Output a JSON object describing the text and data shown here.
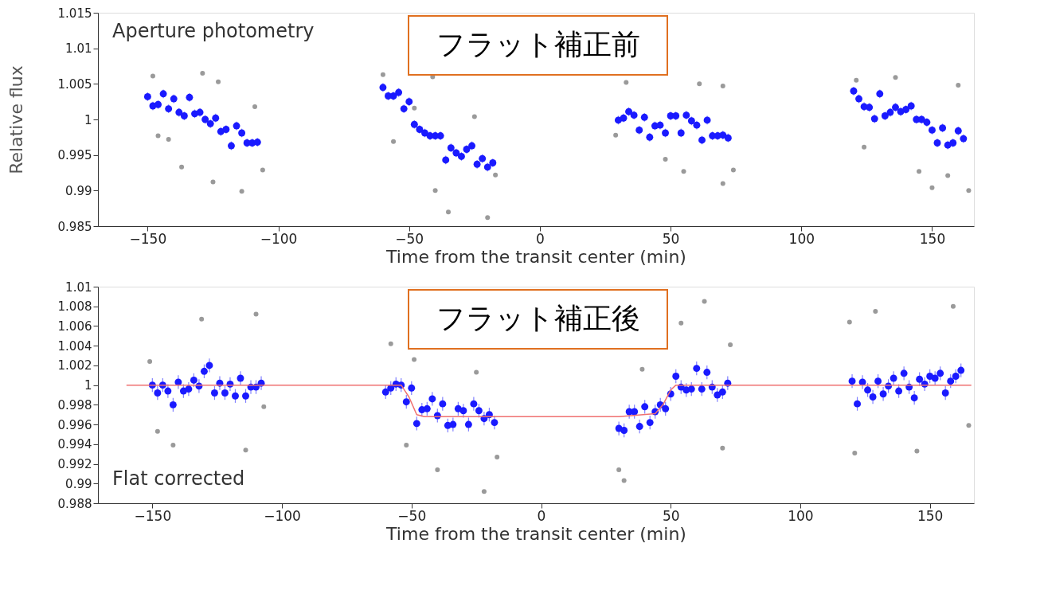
{
  "chart_data": [
    {
      "type": "scatter",
      "xlabel": "Time from the transit center (min)",
      "ylabel": "Relative flux",
      "annotations": [
        "フラット補正前",
        "Aperture photometry"
      ],
      "xlim": [
        -169,
        166
      ],
      "xticks": [
        -150,
        -100,
        -50,
        0,
        50,
        100,
        150
      ],
      "ylim": [
        0.985,
        1.015
      ],
      "yticks": [
        0.985,
        0.99,
        0.995,
        1,
        1.005,
        1.01,
        1.015
      ],
      "grid": false,
      "series": [
        {
          "marker": "circle",
          "color": "#9a9a9a",
          "x": [
            -148,
            -146,
            -142,
            -137,
            -123,
            -125,
            -114,
            -109,
            -106,
            -129,
            -60,
            -56,
            -48,
            -40,
            -35,
            -25,
            -20,
            -17,
            -41,
            33,
            29,
            48,
            55,
            61,
            70,
            70,
            74,
            121,
            124,
            150,
            156,
            160,
            164,
            145,
            136
          ],
          "values": [
            1.0061,
            0.9977,
            0.9972,
            0.9933,
            1.0053,
            0.9912,
            0.9899,
            1.0018,
            0.9929,
            1.0065,
            1.0063,
            0.9969,
            1.0016,
            0.99,
            0.987,
            1.0004,
            0.9862,
            0.9922,
            1.006,
            1.0052,
            0.9978,
            0.9944,
            0.9927,
            1.005,
            0.991,
            1.0047,
            0.9929,
            1.0055,
            0.9961,
            0.9904,
            0.9921,
            1.0048,
            0.99,
            0.9927,
            1.0059
          ]
        },
        {
          "marker": "circle",
          "color": "#1a1aff",
          "x": [
            -150,
            -148,
            -146,
            -144,
            -142,
            -140,
            -138,
            -136,
            -134,
            -132,
            -130,
            -128,
            -126,
            -124,
            -122,
            -120,
            -118,
            -116,
            -114,
            -112,
            -110,
            -108,
            -60,
            -58,
            -56,
            -54,
            -52,
            -50,
            -48,
            -46,
            -44,
            -42,
            -40,
            -38,
            -36,
            -34,
            -32,
            -30,
            -28,
            -26,
            -24,
            -22,
            -20,
            -18,
            30,
            32,
            34,
            36,
            38,
            40,
            42,
            44,
            46,
            48,
            50,
            52,
            54,
            56,
            58,
            60,
            62,
            64,
            66,
            68,
            70,
            72,
            120,
            122,
            124,
            126,
            128,
            130,
            132,
            134,
            136,
            138,
            140,
            142,
            144,
            146,
            148,
            150,
            152,
            154,
            156,
            158,
            160,
            162
          ],
          "values": [
            1.0032,
            1.0019,
            1.0021,
            1.0036,
            1.0015,
            1.0029,
            1.001,
            1.0005,
            1.0031,
            1.0008,
            1.001,
            1.0,
            0.9994,
            1.0002,
            0.9983,
            0.9986,
            0.9963,
            0.9991,
            0.9981,
            0.9967,
            0.9967,
            0.9968,
            1.0045,
            1.0033,
            1.0033,
            1.0038,
            1.0015,
            1.0025,
            0.9993,
            0.9986,
            0.9981,
            0.9977,
            0.9977,
            0.9977,
            0.9943,
            0.996,
            0.9953,
            0.9948,
            0.9958,
            0.9963,
            0.9937,
            0.9945,
            0.9933,
            0.9939,
            0.9999,
            1.0002,
            1.0011,
            1.0006,
            0.9985,
            1.0003,
            0.9975,
            0.9991,
            0.9992,
            0.9981,
            1.0005,
            1.0005,
            0.9981,
            1.0006,
            0.9998,
            0.9992,
            0.9971,
            0.9999,
            0.9977,
            0.9977,
            0.9978,
            0.9974,
            1.004,
            1.0029,
            1.0018,
            1.0017,
            1.0001,
            1.0036,
            1.0005,
            1.001,
            1.0017,
            1.0011,
            1.0014,
            1.0019,
            1.0,
            1.0,
            0.9996,
            0.9985,
            0.9967,
            0.9988,
            0.9964,
            0.9967,
            0.9984,
            0.9973
          ],
          "errors": [
            0.0006,
            0.0006,
            0.0006,
            0.0006,
            0.0006,
            0.0006,
            0.0006,
            0.0006,
            0.0006,
            0.0006,
            0.0006,
            0.0006,
            0.0006,
            0.0006,
            0.0006,
            0.0006,
            0.0006,
            0.0006,
            0.0006,
            0.0006,
            0.0006,
            0.0006,
            0.0006,
            0.0006,
            0.0006,
            0.0006,
            0.0006,
            0.0006,
            0.0006,
            0.0006,
            0.0006,
            0.0006,
            0.0006,
            0.0006,
            0.0006,
            0.0006,
            0.0006,
            0.0006,
            0.0006,
            0.0006,
            0.0006,
            0.0006,
            0.0006,
            0.0006,
            0.0006,
            0.0006,
            0.0006,
            0.0006,
            0.0006,
            0.0006,
            0.0006,
            0.0006,
            0.0006,
            0.0006,
            0.0006,
            0.0006,
            0.0006,
            0.0006,
            0.0006,
            0.0006,
            0.0006,
            0.0006,
            0.0006,
            0.0006,
            0.0006,
            0.0006,
            0.0006,
            0.0006,
            0.0006,
            0.0006,
            0.0006,
            0.0006,
            0.0006,
            0.0006,
            0.0006,
            0.0006,
            0.0006,
            0.0006,
            0.0006,
            0.0006,
            0.0006,
            0.0006,
            0.0006,
            0.0006,
            0.0006,
            0.0006,
            0.0006,
            0.0006
          ]
        }
      ]
    },
    {
      "type": "scatter",
      "xlabel": "Time from the transit center (min)",
      "annotations": [
        "フラット補正後",
        "Flat corrected"
      ],
      "xlim": [
        -171,
        167
      ],
      "xticks": [
        -150,
        -100,
        -50,
        0,
        50,
        100,
        150
      ],
      "ylim": [
        0.988,
        1.01
      ],
      "yticks": [
        0.988,
        0.99,
        0.992,
        0.994,
        0.996,
        0.998,
        1,
        1.002,
        1.004,
        1.006,
        1.008,
        1.01
      ],
      "grid": false,
      "series": [
        {
          "marker": "circle",
          "color": "#9a9a9a",
          "x": [
            -131,
            -148,
            -142,
            -110,
            -114,
            -151,
            -107,
            -58,
            -52,
            -40,
            -22,
            -25,
            -17,
            -49,
            32,
            30,
            54,
            63,
            73,
            70,
            39,
            129,
            121,
            159,
            165,
            145,
            119
          ],
          "values": [
            1.0067,
            0.9953,
            0.9939,
            1.0072,
            0.9934,
            1.0024,
            0.9978,
            1.0042,
            0.9939,
            0.9914,
            0.9892,
            1.0013,
            0.9927,
            1.0026,
            0.9903,
            0.9914,
            1.0063,
            1.0085,
            1.0041,
            0.9936,
            1.0016,
            1.0075,
            0.9931,
            1.008,
            0.9959,
            0.9933,
            1.0064
          ]
        },
        {
          "marker": "circle",
          "color": "#1a1aff",
          "x": [
            -150,
            -148,
            -146,
            -144,
            -142,
            -140,
            -138,
            -136,
            -134,
            -132,
            -130,
            -128,
            -126,
            -124,
            -122,
            -120,
            -118,
            -116,
            -114,
            -112,
            -110,
            -108,
            -60,
            -58,
            -56,
            -54,
            -52,
            -50,
            -48,
            -46,
            -44,
            -42,
            -40,
            -38,
            -36,
            -34,
            -32,
            -30,
            -28,
            -26,
            -24,
            -22,
            -20,
            -18,
            30,
            32,
            34,
            36,
            38,
            40,
            42,
            44,
            46,
            48,
            50,
            52,
            54,
            56,
            58,
            60,
            62,
            64,
            66,
            68,
            70,
            72,
            120,
            122,
            124,
            126,
            128,
            130,
            132,
            134,
            136,
            138,
            140,
            142,
            144,
            146,
            148,
            150,
            152,
            154,
            156,
            158,
            160,
            162
          ],
          "values": [
            1.0,
            0.9992,
            1.0,
            0.9994,
            0.998,
            1.0003,
            0.9994,
            0.9996,
            1.0005,
            0.9999,
            1.0014,
            1.002,
            0.9992,
            1.0002,
            0.9992,
            1.0001,
            0.9989,
            1.0007,
            0.9989,
            0.9998,
            0.9998,
            1.0002,
            0.9993,
            0.9997,
            1.0001,
            1.0,
            0.9983,
            0.9997,
            0.9961,
            0.9975,
            0.9976,
            0.9986,
            0.9969,
            0.9981,
            0.9959,
            0.996,
            0.9976,
            0.9974,
            0.996,
            0.9981,
            0.9974,
            0.9966,
            0.997,
            0.9962,
            0.9956,
            0.9954,
            0.9973,
            0.9973,
            0.9958,
            0.9978,
            0.9962,
            0.9973,
            0.998,
            0.9976,
            0.9991,
            1.0009,
            0.9998,
            0.9995,
            0.9996,
            1.0017,
            0.9996,
            1.0013,
            0.9998,
            0.999,
            0.9993,
            1.0002,
            1.0004,
            0.9981,
            1.0003,
            0.9995,
            0.9988,
            1.0004,
            0.9991,
            0.9999,
            1.0007,
            0.9994,
            1.0012,
            0.9998,
            0.9987,
            1.0006,
            1.0001,
            1.0009,
            1.0007,
            1.0012,
            0.9992,
            1.0004,
            1.0009,
            1.0015
          ],
          "errors": [
            0.0007,
            0.0007,
            0.0007,
            0.0007,
            0.0007,
            0.0007,
            0.0007,
            0.0007,
            0.0007,
            0.0007,
            0.0007,
            0.0007,
            0.0007,
            0.0007,
            0.0007,
            0.0007,
            0.0007,
            0.0007,
            0.0007,
            0.0007,
            0.0007,
            0.0007,
            0.0007,
            0.0007,
            0.0007,
            0.0007,
            0.0007,
            0.0007,
            0.0007,
            0.0007,
            0.0007,
            0.0007,
            0.0007,
            0.0007,
            0.0007,
            0.0007,
            0.0007,
            0.0007,
            0.0007,
            0.0007,
            0.0007,
            0.0007,
            0.0007,
            0.0007,
            0.0007,
            0.0007,
            0.0007,
            0.0007,
            0.0007,
            0.0007,
            0.0007,
            0.0007,
            0.0007,
            0.0007,
            0.0007,
            0.0007,
            0.0007,
            0.0007,
            0.0007,
            0.0007,
            0.0007,
            0.0007,
            0.0007,
            0.0007,
            0.0007,
            0.0007,
            0.0007,
            0.0007,
            0.0007,
            0.0007,
            0.0007,
            0.0007,
            0.0007,
            0.0007,
            0.0007,
            0.0007,
            0.0007,
            0.0007,
            0.0007,
            0.0007,
            0.0007,
            0.0007,
            0.0007,
            0.0007,
            0.0007,
            0.0007,
            0.0007,
            0.0007
          ]
        },
        {
          "type": "line",
          "color": "#f07070",
          "x": [
            -160,
            -54,
            -51,
            -48,
            -45,
            30,
            44,
            47,
            50,
            52,
            166
          ],
          "values": [
            1,
            1,
            0.9988,
            0.997,
            0.9968,
            0.9968,
            0.9971,
            0.998,
            0.9995,
            1,
            1
          ]
        }
      ]
    }
  ]
}
